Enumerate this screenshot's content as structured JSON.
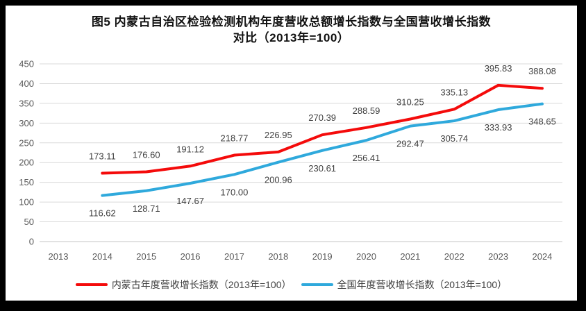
{
  "title": {
    "line1": "图5  内蒙古自治区检验检测机构年度营收总额增长指数与全国营收增长指数",
    "line2": "对比（2013年=100）"
  },
  "colors": {
    "frame": "#000000",
    "background": "#ffffff",
    "grid": "#d9d9d9",
    "zero_axis": "#c6c6c6",
    "axis_text": "#595959",
    "data_label_text": "#404040",
    "series_red": "#f40b0b",
    "series_blue": "#2fa9dc"
  },
  "chart_data": {
    "type": "line",
    "categories": [
      "2013",
      "2014",
      "2015",
      "2016",
      "2017",
      "2018",
      "2019",
      "2020",
      "2021",
      "2022",
      "2023",
      "2024"
    ],
    "ylim": [
      0,
      450
    ],
    "yticks": [
      0,
      50,
      100,
      150,
      200,
      250,
      300,
      350,
      400,
      450
    ],
    "grid": true,
    "legend_position": "bottom",
    "xlabel": "",
    "ylabel": "",
    "series": [
      {
        "name": "内蒙古年度营收增长指数（2013年=100）",
        "color": "#f40b0b",
        "label_position": "above",
        "values": [
          null,
          173.11,
          176.6,
          191.12,
          218.77,
          226.95,
          270.39,
          288.59,
          310.25,
          335.13,
          395.83,
          388.08
        ]
      },
      {
        "name": "全国年度营收增长指数（2013年=100）",
        "color": "#2fa9dc",
        "label_position": "below",
        "values": [
          null,
          116.62,
          128.71,
          147.67,
          170.0,
          200.96,
          230.61,
          256.41,
          292.47,
          305.74,
          333.93,
          348.65
        ]
      }
    ]
  }
}
